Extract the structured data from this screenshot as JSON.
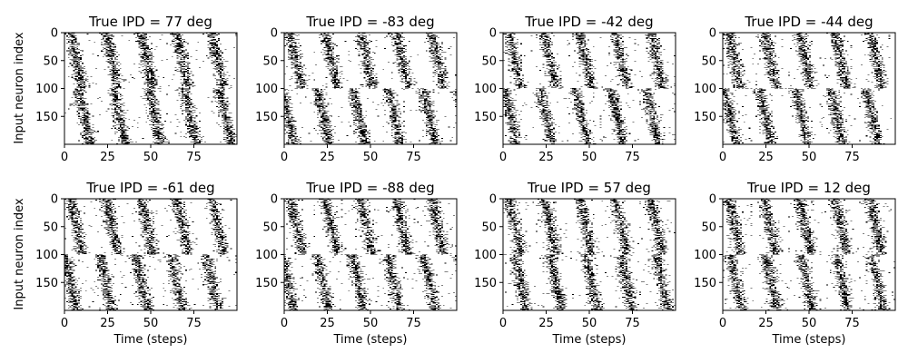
{
  "chart_data": {
    "type": "heatmap",
    "description_of_encoding": "",
    "rows": 2,
    "cols": 4,
    "colors": {
      "spike": "#000000",
      "background": "#ffffff",
      "axis": "#000000"
    },
    "shared": {
      "xlabel": "Time (steps)",
      "ylabel": "Input neuron index",
      "xlim": [
        0,
        100
      ],
      "ylim": [
        200,
        0
      ],
      "xticks": [
        0,
        25,
        50,
        75
      ],
      "yticks": [
        0,
        50,
        100,
        150
      ],
      "x_ticklabels": [
        "0",
        "25",
        "50",
        "75"
      ],
      "y_ticklabels": [
        "0",
        "50",
        "100",
        "150"
      ],
      "n_neurons": 200,
      "n_steps": 100,
      "grid": false,
      "legend": "none"
    },
    "panels": [
      {
        "title": "True IPD = 77 deg",
        "ipd_deg": 77
      },
      {
        "title": "True IPD = -83 deg",
        "ipd_deg": -83
      },
      {
        "title": "True IPD = -42 deg",
        "ipd_deg": -42
      },
      {
        "title": "True IPD = -44 deg",
        "ipd_deg": -44
      },
      {
        "title": "True IPD = -61 deg",
        "ipd_deg": -61
      },
      {
        "title": "True IPD = -88 deg",
        "ipd_deg": -88
      },
      {
        "title": "True IPD = 57 deg",
        "ipd_deg": 57
      },
      {
        "title": "True IPD = 12 deg",
        "ipd_deg": 12
      }
    ]
  }
}
